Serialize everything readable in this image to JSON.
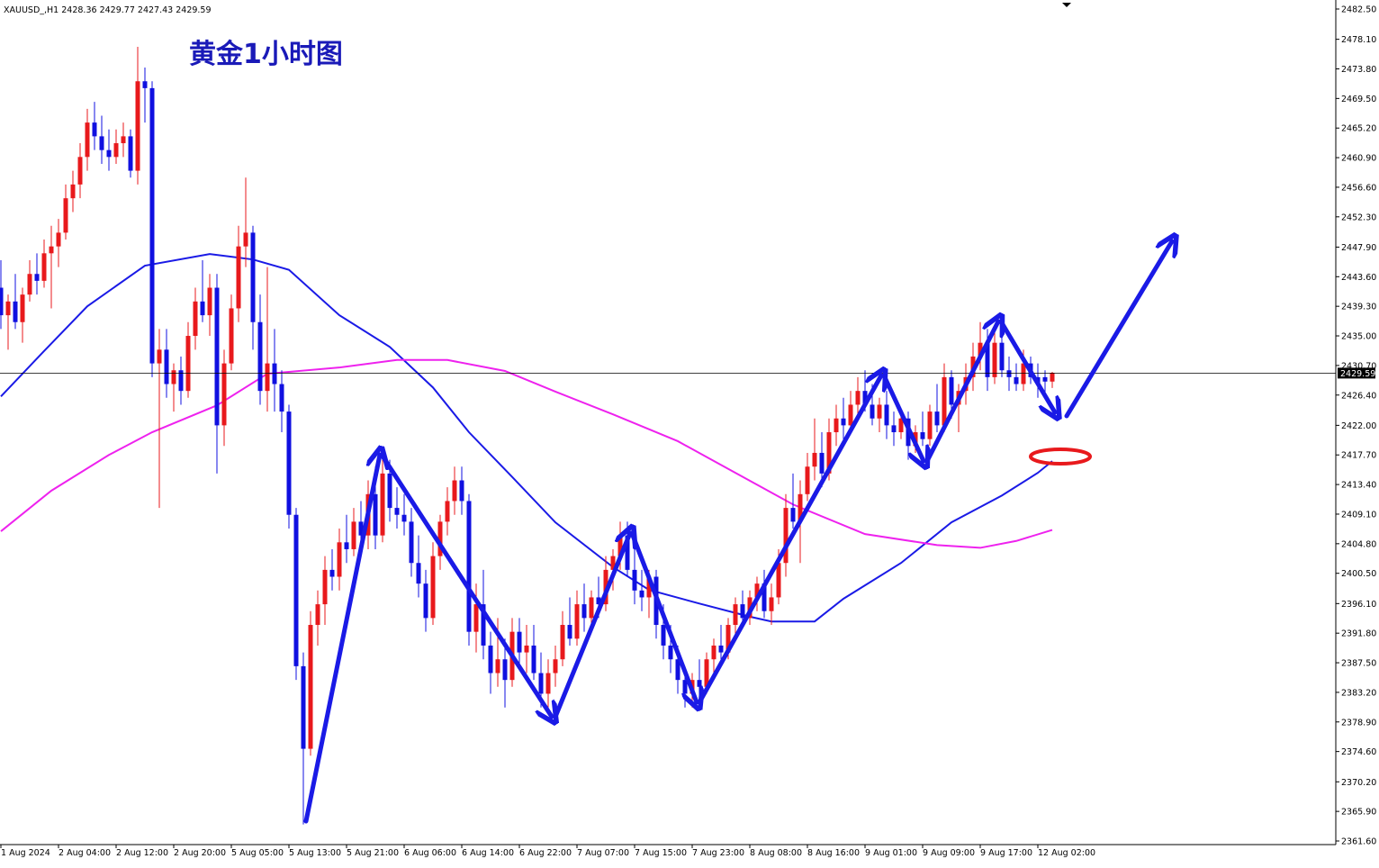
{
  "chart_data": {
    "type": "candlestick",
    "symbol": "XAUUSD_,H1",
    "title": "黄金1小时图",
    "up_color": "#e8191c",
    "down_color": "#1010e0",
    "price_line": true,
    "ylim": [
      2361.6,
      2482.5
    ],
    "yticks": [
      {
        "value": 2482.5,
        "label": "2482.50"
      },
      {
        "value": 2478.1,
        "label": "2478.10"
      },
      {
        "value": 2473.8,
        "label": "2473.80"
      },
      {
        "value": 2469.5,
        "label": "2469.50"
      },
      {
        "value": 2465.2,
        "label": "2465.20"
      },
      {
        "value": 2460.9,
        "label": "2460.90"
      },
      {
        "value": 2456.6,
        "label": "2456.60"
      },
      {
        "value": 2452.3,
        "label": "2452.30"
      },
      {
        "value": 2447.9,
        "label": "2447.90"
      },
      {
        "value": 2443.6,
        "label": "2443.60"
      },
      {
        "value": 2439.3,
        "label": "2439.30"
      },
      {
        "value": 2435,
        "label": "2435.00"
      },
      {
        "value": 2430.7,
        "label": "2430.70"
      },
      {
        "value": 2426.4,
        "label": "2426.40"
      },
      {
        "value": 2422,
        "label": "2422.00"
      },
      {
        "value": 2417.7,
        "label": "2417.70"
      },
      {
        "value": 2413.4,
        "label": "2413.40"
      },
      {
        "value": 2409.1,
        "label": "2409.10"
      },
      {
        "value": 2404.8,
        "label": "2404.80"
      },
      {
        "value": 2400.5,
        "label": "2400.50"
      },
      {
        "value": 2396.1,
        "label": "2396.10"
      },
      {
        "value": 2391.8,
        "label": "2391.80"
      },
      {
        "value": 2387.5,
        "label": "2387.50"
      },
      {
        "value": 2383.2,
        "label": "2383.20"
      },
      {
        "value": 2378.9,
        "label": "2378.90"
      },
      {
        "value": 2374.6,
        "label": "2374.60"
      },
      {
        "value": 2370.2,
        "label": "2370.20"
      },
      {
        "value": 2365.9,
        "label": "2365.90"
      },
      {
        "value": 2361.6,
        "label": "2361.60"
      }
    ],
    "categories": [
      "1 Aug 2024",
      null,
      null,
      null,
      null,
      null,
      null,
      null,
      "2 Aug 04:00",
      null,
      null,
      null,
      null,
      null,
      null,
      null,
      "2 Aug 12:00",
      null,
      null,
      null,
      null,
      null,
      null,
      null,
      "2 Aug 20:00",
      null,
      null,
      null,
      null,
      null,
      null,
      null,
      "5 Aug 05:00",
      null,
      null,
      null,
      null,
      null,
      null,
      null,
      "5 Aug 13:00",
      null,
      null,
      null,
      null,
      null,
      null,
      null,
      "5 Aug 21:00",
      null,
      null,
      null,
      null,
      null,
      null,
      null,
      "6 Aug 06:00",
      null,
      null,
      null,
      null,
      null,
      null,
      null,
      "6 Aug 14:00",
      null,
      null,
      null,
      null,
      null,
      null,
      null,
      "6 Aug 22:00",
      null,
      null,
      null,
      null,
      null,
      null,
      null,
      "7 Aug 07:00",
      null,
      null,
      null,
      null,
      null,
      null,
      null,
      "7 Aug 15:00",
      null,
      null,
      null,
      null,
      null,
      null,
      null,
      "7 Aug 23:00",
      null,
      null,
      null,
      null,
      null,
      null,
      null,
      "8 Aug 08:00",
      null,
      null,
      null,
      null,
      null,
      null,
      null,
      "8 Aug 16:00",
      null,
      null,
      null,
      null,
      null,
      null,
      null,
      "9 Aug 01:00",
      null,
      null,
      null,
      null,
      null,
      null,
      null,
      "9 Aug 09:00",
      null,
      null,
      null,
      null,
      null,
      null,
      null,
      "9 Aug 17:00",
      null,
      null,
      null,
      null,
      null,
      null,
      null,
      "12 Aug 02:00",
      null,
      null
    ],
    "open": [
      2442,
      2438,
      2440,
      2437,
      2441,
      2444,
      2443,
      2447,
      2448,
      2450,
      2455,
      2457,
      2461,
      2466,
      2464,
      2462,
      2461,
      2463,
      2464,
      2459,
      2472,
      2471,
      2431,
      2433,
      2428,
      2430,
      2427,
      2435,
      2440,
      2438,
      2442,
      2422,
      2431,
      2439,
      2448,
      2450,
      2437,
      2427,
      2431,
      2428,
      2424,
      2409,
      2387,
      2375,
      2393,
      2396,
      2401,
      2400,
      2405,
      2404,
      2408,
      2406,
      2412,
      2406,
      2415,
      2410,
      2409,
      2408,
      2402,
      2399,
      2394,
      2403,
      2408,
      2411,
      2414,
      2411,
      2392,
      2396,
      2390,
      2386,
      2388,
      2385,
      2392,
      2389,
      2390,
      2386,
      2383,
      2386,
      2388,
      2393,
      2391,
      2396,
      2394,
      2397,
      2396,
      2401,
      2403,
      2406,
      2401,
      2398,
      2397,
      2400,
      2393,
      2390,
      2388,
      2385,
      2383,
      2385,
      2384,
      2388,
      2390,
      2389,
      2393,
      2396,
      2394,
      2397,
      2399,
      2395,
      2397,
      2402,
      2410,
      2408,
      2412,
      2416,
      2418,
      2415,
      2421,
      2423,
      2422,
      2425,
      2427,
      2425,
      2423,
      2425,
      2422,
      2421,
      2423,
      2419,
      2421,
      2420,
      2424,
      2422,
      2429,
      2425,
      2427,
      2429,
      2432,
      2434,
      2429,
      2434,
      2430,
      2429,
      2428,
      2431,
      2429,
      2429,
      2428.36
    ],
    "high": [
      2446,
      2441,
      2444,
      2442,
      2446,
      2447,
      2449,
      2451,
      2452,
      2457,
      2459,
      2463,
      2468,
      2469,
      2467,
      2465,
      2465,
      2466,
      2465,
      2477,
      2474,
      2472,
      2436,
      2436,
      2431,
      2432,
      2437,
      2442,
      2446,
      2444,
      2444,
      2433,
      2441,
      2451,
      2458,
      2451,
      2441,
      2445,
      2436,
      2430,
      2425,
      2410,
      2389,
      2395,
      2398,
      2403,
      2404,
      2407,
      2409,
      2410,
      2411,
      2414,
      2416,
      2417,
      2417,
      2413,
      2412,
      2410,
      2406,
      2401,
      2405,
      2409,
      2413,
      2416,
      2416,
      2412,
      2399,
      2401,
      2392,
      2394,
      2391,
      2394,
      2394,
      2393,
      2393,
      2389,
      2388,
      2390,
      2395,
      2397,
      2398,
      2399,
      2398,
      2400,
      2403,
      2404,
      2408,
      2408,
      2404,
      2401,
      2401,
      2401,
      2396,
      2393,
      2390,
      2387,
      2386,
      2388,
      2389,
      2391,
      2393,
      2394,
      2397,
      2398,
      2398,
      2400,
      2401,
      2399,
      2404,
      2412,
      2415,
      2414,
      2418,
      2423,
      2421,
      2423,
      2425,
      2426,
      2427,
      2429,
      2430,
      2428,
      2426,
      2427,
      2424,
      2424,
      2424,
      2422,
      2424,
      2425,
      2428,
      2431,
      2430,
      2428,
      2431,
      2434,
      2437,
      2436,
      2436,
      2435,
      2432,
      2431,
      2433,
      2432,
      2431,
      2430,
      2429.77
    ],
    "low": [
      2436,
      2433,
      2436,
      2434,
      2440,
      2441,
      2442,
      2439,
      2445,
      2449,
      2453,
      2455,
      2459,
      2462,
      2460,
      2459,
      2460,
      2461,
      2458,
      2457,
      2466,
      2429,
      2410,
      2426,
      2424,
      2425,
      2426,
      2433,
      2437,
      2435,
      2415,
      2419,
      2430,
      2437,
      2445,
      2433,
      2425,
      2424,
      2424,
      2421,
      2407,
      2385,
      2364,
      2374,
      2390,
      2393,
      2398,
      2398,
      2402,
      2403,
      2404,
      2404,
      2404,
      2405,
      2408,
      2407,
      2406,
      2400,
      2397,
      2392,
      2393,
      2401,
      2406,
      2409,
      2409,
      2390,
      2389,
      2388,
      2383,
      2384,
      2381,
      2384,
      2387,
      2386,
      2385,
      2381,
      2381,
      2384,
      2387,
      2390,
      2390,
      2392,
      2393,
      2394,
      2395,
      2398,
      2401,
      2400,
      2396,
      2395,
      2394,
      2391,
      2388,
      2386,
      2383,
      2381,
      2381,
      2382,
      2383,
      2386,
      2388,
      2388,
      2391,
      2393,
      2393,
      2395,
      2394,
      2393,
      2396,
      2400,
      2407,
      2402,
      2411,
      2414,
      2413,
      2414,
      2419,
      2420,
      2421,
      2423,
      2424,
      2422,
      2421,
      2420,
      2419,
      2420,
      2417,
      2418,
      2419,
      2419,
      2421,
      2421,
      2423,
      2421,
      2425,
      2427,
      2430,
      2427,
      2428,
      2429,
      2427,
      2427,
      2427,
      2428,
      2426,
      2426,
      2427.43
    ],
    "close": [
      2438,
      2440,
      2437,
      2441,
      2444,
      2443,
      2447,
      2448,
      2450,
      2455,
      2457,
      2461,
      2466,
      2464,
      2462,
      2461,
      2463,
      2464,
      2459,
      2472,
      2471,
      2431,
      2433,
      2428,
      2430,
      2427,
      2435,
      2440,
      2438,
      2442,
      2422,
      2431,
      2439,
      2448,
      2450,
      2437,
      2427,
      2431,
      2428,
      2424,
      2409,
      2387,
      2375,
      2393,
      2396,
      2401,
      2400,
      2405,
      2404,
      2408,
      2406,
      2412,
      2406,
      2415,
      2410,
      2409,
      2408,
      2402,
      2399,
      2394,
      2403,
      2408,
      2411,
      2414,
      2411,
      2392,
      2396,
      2390,
      2386,
      2388,
      2385,
      2392,
      2389,
      2390,
      2386,
      2383,
      2386,
      2388,
      2393,
      2391,
      2396,
      2394,
      2397,
      2396,
      2401,
      2403,
      2406,
      2401,
      2398,
      2397,
      2400,
      2393,
      2390,
      2388,
      2385,
      2383,
      2385,
      2384,
      2388,
      2390,
      2389,
      2393,
      2396,
      2394,
      2397,
      2399,
      2395,
      2397,
      2402,
      2410,
      2408,
      2412,
      2416,
      2418,
      2415,
      2421,
      2423,
      2422,
      2425,
      2427,
      2425,
      2423,
      2425,
      2422,
      2421,
      2423,
      2419,
      2421,
      2420,
      2424,
      2422,
      2429,
      2425,
      2427,
      2429,
      2432,
      2434,
      2429,
      2434,
      2430,
      2429,
      2428,
      2431,
      2429,
      2428,
      2428.36,
      2429.59
    ],
    "lines": [
      {
        "color": "#1a1ae6",
        "x": [
          0,
          6,
          12,
          20,
          29,
          35,
          40,
          47,
          54,
          60,
          65,
          71,
          77,
          85,
          90,
          97,
          104,
          107,
          113,
          117,
          125,
          132,
          139,
          144,
          146
        ],
        "values": [
          2426.2,
          2432.8,
          2439.3,
          2445.2,
          2446.9,
          2446.1,
          2444.6,
          2438,
          2433.4,
          2427.5,
          2421,
          2414.5,
          2407.9,
          2401.4,
          2398.1,
          2396.1,
          2394.2,
          2393.5,
          2393.5,
          2396.8,
          2402,
          2407.9,
          2411.8,
          2415.1,
          2416.8
        ]
      },
      {
        "color": "#ee22ee",
        "x": [
          0,
          7,
          15,
          21,
          30,
          37,
          47,
          55,
          62,
          70,
          77,
          85,
          94,
          102,
          110,
          120,
          130,
          136,
          141,
          146
        ],
        "values": [
          2406.6,
          2412.5,
          2417.7,
          2421,
          2424.9,
          2429.5,
          2430.4,
          2431.5,
          2431.5,
          2429.9,
          2426.9,
          2423.6,
          2419.7,
          2415.1,
          2410.5,
          2406.2,
          2404.6,
          2404.2,
          2405.2,
          2406.8
        ]
      }
    ]
  }
}
